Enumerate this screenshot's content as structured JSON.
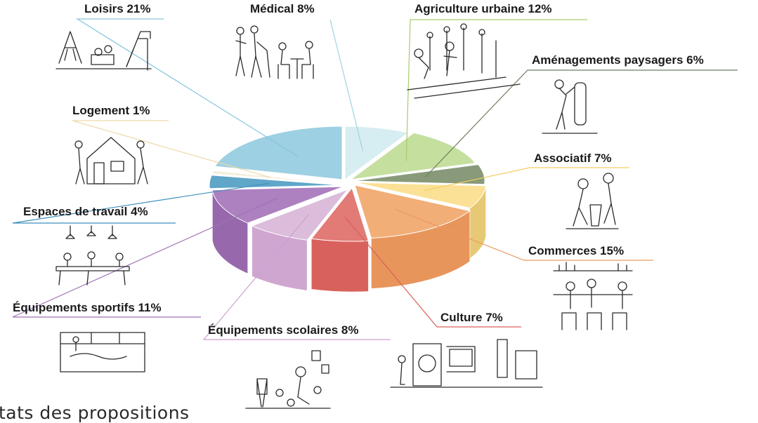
{
  "caption": "tats des propositions",
  "chart_data": {
    "type": "pie",
    "style": "3d-exploded",
    "title": "",
    "slices": [
      {
        "label": "Médical 8%",
        "value": 8,
        "color": "#d6edf1",
        "side": "#bcdde3",
        "lineColor": "#9fd4dd"
      },
      {
        "label": "Agriculture urbaine 12%",
        "value": 12,
        "color": "#c5df9f",
        "side": "#a9c883",
        "lineColor": "#a6cc6e"
      },
      {
        "label": "Aménagements paysagers 6%",
        "value": 6,
        "color": "#889a7a",
        "side": "#6d7d61",
        "lineColor": "#6f7f62"
      },
      {
        "label": "Associatif 7%",
        "value": 7,
        "color": "#fbe196",
        "side": "#e7c975",
        "lineColor": "#f2cf61"
      },
      {
        "label": "Commerces 15%",
        "value": 15,
        "color": "#f2ae77",
        "side": "#e8955b",
        "lineColor": "#ea9a5f"
      },
      {
        "label": "Culture 7%",
        "value": 7,
        "color": "#e27a76",
        "side": "#d9615d",
        "lineColor": "#d9605b"
      },
      {
        "label": "Équipements scolaires 8%",
        "value": 8,
        "color": "#dbbddb",
        "side": "#cfa6cf",
        "lineColor": "#c9a2ce"
      },
      {
        "label": "Équipements sportifs 11%",
        "value": 11,
        "color": "#ad80bf",
        "side": "#9868ac",
        "lineColor": "#9e72b5"
      },
      {
        "label": "Espaces de travail 4%",
        "value": 4,
        "color": "#5fa6c9",
        "side": "#4a8eb2",
        "lineColor": "#3f8fbd"
      },
      {
        "label": "Logement 1%",
        "value": 1,
        "color": "#f3eedd",
        "side": "#e3dcc5",
        "lineColor": "#ecd9a8"
      },
      {
        "label": "Loisirs 21%",
        "value": 21,
        "color": "#9dd0e3",
        "side": "#7fbbd1",
        "lineColor": "#86c6de"
      }
    ]
  }
}
